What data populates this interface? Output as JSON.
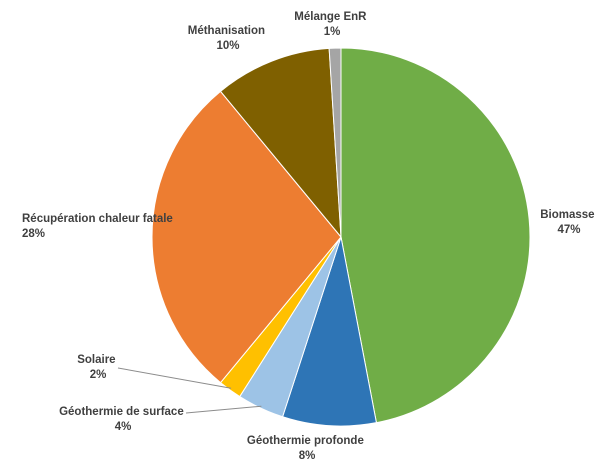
{
  "chart_data": {
    "type": "pie",
    "title": "",
    "start_angle_deg": 0,
    "direction": "clockwise",
    "slices": [
      {
        "label": "Biomasse",
        "value": 47,
        "value_label": "47%",
        "color": "#70ad47"
      },
      {
        "label": "Géothermie profonde",
        "value": 8,
        "value_label": "8%",
        "color": "#2e75b6"
      },
      {
        "label": "Géothermie de surface",
        "value": 4,
        "value_label": "4%",
        "color": "#9dc3e6"
      },
      {
        "label": "Solaire",
        "value": 2,
        "value_label": "2%",
        "color": "#ffc000"
      },
      {
        "label": "Récupération chaleur fatale",
        "value": 28,
        "value_label": "28%",
        "color": "#ed7d31"
      },
      {
        "label": "Méthanisation",
        "value": 10,
        "value_label": "10%",
        "color": "#7f6000"
      },
      {
        "label": "Mélange EnR",
        "value": 1,
        "value_label": "1%",
        "color": "#a5a5a5"
      }
    ],
    "legend": "none"
  }
}
